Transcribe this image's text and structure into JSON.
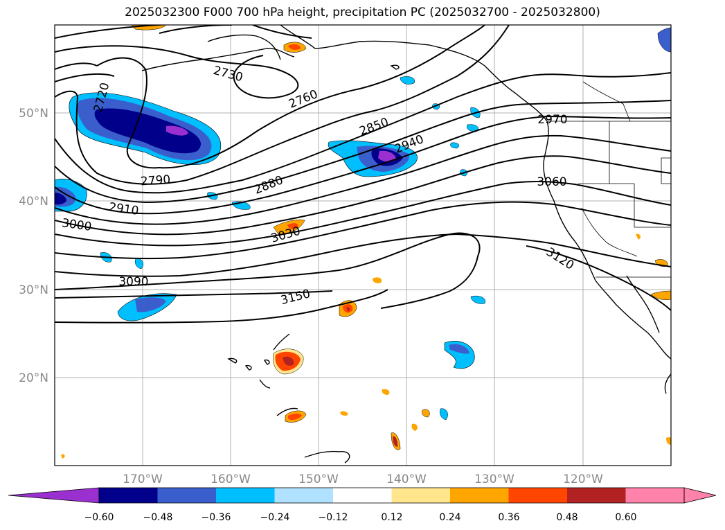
{
  "title": "2025032300 F000 700 hPa height, precipitation PC (2025032700 - 2025032800)",
  "map": {
    "lat_ticks": [
      "50°N",
      "40°N",
      "30°N",
      "20°N"
    ],
    "lon_ticks": [
      "170°W",
      "160°W",
      "150°W",
      "140°W",
      "130°W",
      "120°W"
    ],
    "contour_labels": [
      "2720",
      "2730",
      "2760",
      "2790",
      "2850",
      "2880",
      "2910",
      "2940",
      "2970",
      "3000",
      "3030",
      "3060",
      "3090",
      "3120",
      "3150"
    ]
  },
  "colorbar": {
    "labels": [
      "−0.60",
      "−0.48",
      "−0.36",
      "−0.24",
      "−0.12",
      "0.12",
      "0.24",
      "0.36",
      "0.48",
      "0.60"
    ],
    "colors": [
      "#9b30d0",
      "#00008b",
      "#3a5fcd",
      "#00bfff",
      "#b0e2ff",
      "#ffffff",
      "#ffe68c",
      "#ffa500",
      "#ff4500",
      "#b22222",
      "#ff82ab",
      "#ff82ab"
    ]
  },
  "chart_data": {
    "type": "map",
    "title": "2025032300 F000 700 hPa height, precipitation PC (2025032700 - 2025032800)",
    "projection": "cylindrical",
    "lon_range": [
      -180,
      -110
    ],
    "lat_range": [
      10,
      60
    ],
    "field_contour": "700 hPa height",
    "field_filled": "precipitation PC",
    "contour_levels": [
      2720,
      2730,
      2760,
      2790,
      2850,
      2880,
      2910,
      2940,
      2970,
      3000,
      3030,
      3060,
      3090,
      3120,
      3150
    ],
    "colorbar_levels": [
      -0.6,
      -0.48,
      -0.36,
      -0.24,
      -0.12,
      0.12,
      0.24,
      0.36,
      0.48,
      0.6
    ],
    "grid": true
  }
}
